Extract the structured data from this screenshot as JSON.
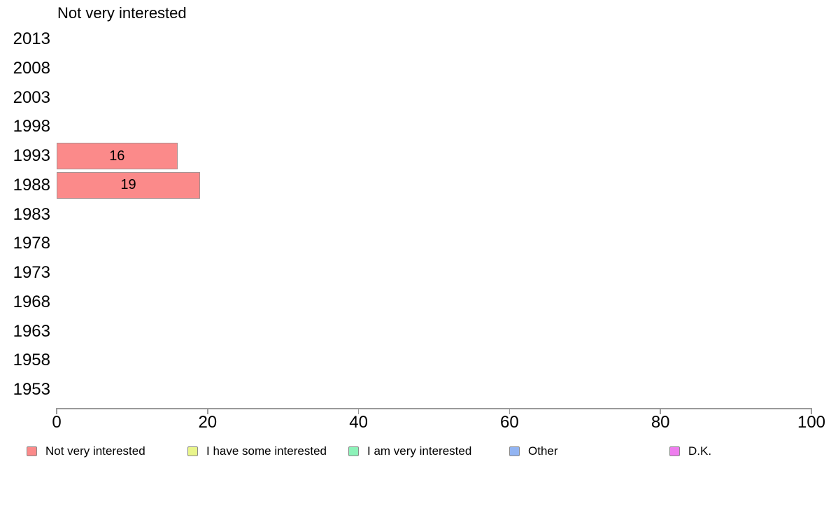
{
  "chart_data": {
    "type": "bar",
    "orientation": "horizontal",
    "title": "Not very interested",
    "categories": [
      "2013",
      "2008",
      "2003",
      "1998",
      "1993",
      "1988",
      "1983",
      "1978",
      "1973",
      "1968",
      "1963",
      "1958",
      "1953"
    ],
    "values": [
      null,
      null,
      null,
      null,
      16,
      19,
      null,
      null,
      null,
      null,
      null,
      null,
      null
    ],
    "xlim": [
      0,
      100
    ],
    "x_ticks": [
      0,
      20,
      40,
      60,
      80,
      100
    ],
    "grid": false,
    "bar_color": "#FB8A8A",
    "bar_border_color": "#A89090",
    "axis_color": "#9a9a9a",
    "legend_position": "bottom",
    "legend": [
      {
        "label": "Not very interested",
        "color": "#FB8A8A"
      },
      {
        "label": "I have some interested",
        "color": "#E9F58B"
      },
      {
        "label": "I am very interested",
        "color": "#8DF2B9"
      },
      {
        "label": "Other",
        "color": "#92B4F2"
      },
      {
        "label": "D.K.",
        "color": "#EE7DEE"
      }
    ]
  }
}
